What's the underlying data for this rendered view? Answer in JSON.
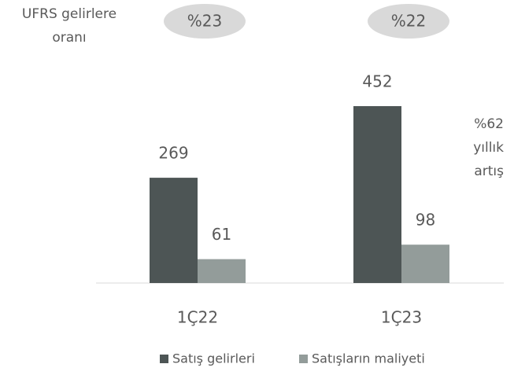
{
  "chart_data": {
    "type": "bar",
    "categories": [
      "1Ç22",
      "1Ç23"
    ],
    "series": [
      {
        "name": "Satış gelirleri",
        "color": "#4d5555",
        "values": [
          269,
          452
        ]
      },
      {
        "name": "Satışların maliyeti",
        "color": "#939c9a",
        "values": [
          61,
          98
        ]
      }
    ],
    "ratio_label": [
      "UFRS gelirlere",
      "oranı"
    ],
    "ratio_values": [
      "%23",
      "%22"
    ],
    "growth_note": [
      "%62",
      "yıllık",
      "artış"
    ],
    "legend": "bottom"
  }
}
